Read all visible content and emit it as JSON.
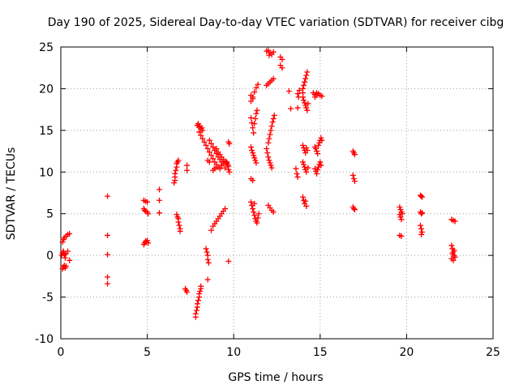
{
  "chart_data": {
    "type": "scatter",
    "title": "Day 190 of 2025, Sidereal Day-to-day VTEC variation (SDTVAR) for receiver cibg",
    "xlabel": "GPS time / hours",
    "ylabel": "SDTVAR / TECUs",
    "xlim": [
      0,
      25
    ],
    "ylim": [
      -10,
      25
    ],
    "xticks": [
      0,
      5,
      10,
      15,
      20,
      25
    ],
    "yticks": [
      -10,
      -5,
      0,
      5,
      10,
      15,
      20,
      25
    ],
    "grid": true,
    "marker": "+",
    "color": "#ff0000",
    "series": [
      {
        "name": "SDTVAR",
        "points": [
          [
            0.1,
            -1.6
          ],
          [
            0.15,
            -1.4
          ],
          [
            0.2,
            -1.2
          ],
          [
            0.25,
            -1.5
          ],
          [
            0.3,
            -1.3
          ],
          [
            0.05,
            0.0
          ],
          [
            0.1,
            0.3
          ],
          [
            0.15,
            0.5
          ],
          [
            0.2,
            0.1
          ],
          [
            0.25,
            -0.3
          ],
          [
            0.3,
            0.2
          ],
          [
            0.4,
            0.5
          ],
          [
            0.1,
            1.6
          ],
          [
            0.15,
            1.9
          ],
          [
            0.2,
            2.1
          ],
          [
            0.3,
            2.3
          ],
          [
            0.4,
            2.5
          ],
          [
            0.5,
            2.6
          ],
          [
            0.5,
            -0.6
          ],
          [
            2.7,
            7.1
          ],
          [
            2.7,
            2.4
          ],
          [
            2.7,
            0.1
          ],
          [
            2.7,
            -2.6
          ],
          [
            2.7,
            -3.4
          ],
          [
            4.8,
            6.6
          ],
          [
            4.9,
            6.5
          ],
          [
            5.0,
            6.4
          ],
          [
            4.8,
            5.6
          ],
          [
            4.85,
            5.4
          ],
          [
            4.9,
            5.3
          ],
          [
            5.0,
            5.2
          ],
          [
            5.05,
            5.0
          ],
          [
            4.8,
            1.3
          ],
          [
            4.85,
            1.5
          ],
          [
            4.9,
            1.7
          ],
          [
            4.95,
            1.6
          ],
          [
            5.0,
            1.8
          ],
          [
            5.05,
            1.5
          ],
          [
            5.7,
            7.9
          ],
          [
            5.7,
            6.6
          ],
          [
            5.7,
            5.1
          ],
          [
            6.7,
            11.0
          ],
          [
            6.75,
            11.2
          ],
          [
            6.8,
            11.4
          ],
          [
            6.7,
            10.6
          ],
          [
            6.65,
            10.2
          ],
          [
            6.6,
            9.8
          ],
          [
            6.6,
            9.4
          ],
          [
            6.6,
            9.0
          ],
          [
            6.55,
            8.7
          ],
          [
            6.7,
            4.9
          ],
          [
            6.75,
            4.6
          ],
          [
            6.8,
            4.4
          ],
          [
            6.8,
            4.0
          ],
          [
            6.85,
            3.6
          ],
          [
            6.9,
            3.2
          ],
          [
            6.9,
            2.9
          ],
          [
            7.3,
            10.8
          ],
          [
            7.3,
            10.2
          ],
          [
            7.2,
            -4.0
          ],
          [
            7.25,
            -4.2
          ],
          [
            7.3,
            -4.4
          ],
          [
            7.8,
            -7.4
          ],
          [
            7.8,
            -7.0
          ],
          [
            7.85,
            -6.6
          ],
          [
            7.9,
            -6.2
          ],
          [
            7.9,
            -5.8
          ],
          [
            7.95,
            -5.4
          ],
          [
            8.0,
            -5.0
          ],
          [
            8.0,
            -4.6
          ],
          [
            8.05,
            -4.3
          ],
          [
            8.1,
            -4.0
          ],
          [
            8.1,
            -3.7
          ],
          [
            7.9,
            15.6
          ],
          [
            8.0,
            15.4
          ],
          [
            8.1,
            15.2
          ],
          [
            8.2,
            15.0
          ],
          [
            7.95,
            15.8
          ],
          [
            8.05,
            15.5
          ],
          [
            8.15,
            15.3
          ],
          [
            8.0,
            14.8
          ],
          [
            8.1,
            14.4
          ],
          [
            8.2,
            14.0
          ],
          [
            8.3,
            13.6
          ],
          [
            8.4,
            13.2
          ],
          [
            8.5,
            12.8
          ],
          [
            8.6,
            12.4
          ],
          [
            8.7,
            12.0
          ],
          [
            8.8,
            11.6
          ],
          [
            8.9,
            11.2
          ],
          [
            9.0,
            10.9
          ],
          [
            9.1,
            10.6
          ],
          [
            9.2,
            10.4
          ],
          [
            8.6,
            13.8
          ],
          [
            8.7,
            13.4
          ],
          [
            8.8,
            13.0
          ],
          [
            8.9,
            12.6
          ],
          [
            9.0,
            12.2
          ],
          [
            9.1,
            11.8
          ],
          [
            9.2,
            11.5
          ],
          [
            9.3,
            11.2
          ],
          [
            9.0,
            12.8
          ],
          [
            9.1,
            12.4
          ],
          [
            9.2,
            12.1
          ],
          [
            9.3,
            11.8
          ],
          [
            9.4,
            11.5
          ],
          [
            9.5,
            11.3
          ],
          [
            9.6,
            11.1
          ],
          [
            8.8,
            10.2
          ],
          [
            8.9,
            10.4
          ],
          [
            9.0,
            10.6
          ],
          [
            9.3,
            10.8
          ],
          [
            9.4,
            11.0
          ],
          [
            9.5,
            10.5
          ],
          [
            8.5,
            11.4
          ],
          [
            8.6,
            11.2
          ],
          [
            8.4,
            0.8
          ],
          [
            8.45,
            0.4
          ],
          [
            8.5,
            0.0
          ],
          [
            8.5,
            -0.5
          ],
          [
            8.55,
            -0.9
          ],
          [
            8.5,
            -2.9
          ],
          [
            8.7,
            3.0
          ],
          [
            8.8,
            3.5
          ],
          [
            8.9,
            3.8
          ],
          [
            9.0,
            4.1
          ],
          [
            9.1,
            4.4
          ],
          [
            9.2,
            4.7
          ],
          [
            9.3,
            5.0
          ],
          [
            9.4,
            5.3
          ],
          [
            9.5,
            5.6
          ],
          [
            9.7,
            13.6
          ],
          [
            9.75,
            13.4
          ],
          [
            9.6,
            11.2
          ],
          [
            9.65,
            10.9
          ],
          [
            9.7,
            10.7
          ],
          [
            9.7,
            10.3
          ],
          [
            9.75,
            10.0
          ],
          [
            9.7,
            -0.7
          ],
          [
            11.0,
            18.5
          ],
          [
            11.1,
            19.0
          ],
          [
            11.2,
            19.6
          ],
          [
            11.3,
            20.1
          ],
          [
            11.4,
            20.5
          ],
          [
            11.0,
            19.2
          ],
          [
            11.1,
            18.8
          ],
          [
            11.0,
            16.5
          ],
          [
            11.05,
            15.9
          ],
          [
            11.1,
            15.3
          ],
          [
            11.15,
            14.7
          ],
          [
            11.2,
            15.8
          ],
          [
            11.25,
            16.4
          ],
          [
            11.3,
            17.0
          ],
          [
            11.35,
            17.4
          ],
          [
            11.0,
            13.0
          ],
          [
            11.05,
            12.6
          ],
          [
            11.1,
            12.3
          ],
          [
            11.15,
            12.0
          ],
          [
            11.2,
            11.7
          ],
          [
            11.25,
            11.4
          ],
          [
            11.3,
            11.1
          ],
          [
            11.0,
            9.2
          ],
          [
            11.1,
            9.0
          ],
          [
            11.0,
            6.4
          ],
          [
            11.05,
            6.0
          ],
          [
            11.1,
            5.6
          ],
          [
            11.15,
            5.2
          ],
          [
            11.2,
            4.8
          ],
          [
            11.25,
            4.4
          ],
          [
            11.3,
            4.1
          ],
          [
            11.35,
            3.9
          ],
          [
            11.4,
            4.5
          ],
          [
            11.45,
            5.0
          ],
          [
            11.2,
            6.2
          ],
          [
            12.0,
            24.6
          ],
          [
            12.1,
            24.3
          ],
          [
            12.2,
            24.1
          ],
          [
            12.3,
            24.4
          ],
          [
            11.9,
            24.5
          ],
          [
            12.05,
            24.0
          ],
          [
            11.9,
            20.4
          ],
          [
            12.0,
            20.6
          ],
          [
            12.1,
            20.8
          ],
          [
            12.2,
            21.0
          ],
          [
            12.3,
            21.2
          ],
          [
            12.0,
            13.5
          ],
          [
            12.05,
            14.0
          ],
          [
            12.1,
            14.5
          ],
          [
            12.15,
            15.0
          ],
          [
            12.2,
            15.5
          ],
          [
            12.25,
            16.0
          ],
          [
            12.3,
            16.4
          ],
          [
            12.35,
            16.8
          ],
          [
            11.9,
            12.8
          ],
          [
            11.95,
            12.3
          ],
          [
            12.0,
            11.8
          ],
          [
            12.05,
            11.4
          ],
          [
            12.1,
            11.1
          ],
          [
            12.15,
            10.8
          ],
          [
            12.2,
            10.5
          ],
          [
            12.0,
            6.0
          ],
          [
            12.1,
            5.7
          ],
          [
            12.2,
            5.4
          ],
          [
            12.3,
            5.2
          ],
          [
            12.7,
            23.8
          ],
          [
            12.8,
            23.5
          ],
          [
            12.7,
            22.8
          ],
          [
            12.8,
            22.5
          ],
          [
            13.2,
            19.7
          ],
          [
            13.3,
            17.6
          ],
          [
            13.7,
            19.4
          ],
          [
            13.75,
            19.0
          ],
          [
            13.8,
            19.8
          ],
          [
            13.7,
            17.7
          ],
          [
            13.6,
            10.4
          ],
          [
            13.65,
            9.8
          ],
          [
            13.7,
            9.4
          ],
          [
            14.0,
            20.0
          ],
          [
            14.05,
            20.4
          ],
          [
            14.1,
            20.8
          ],
          [
            14.15,
            21.2
          ],
          [
            14.2,
            21.6
          ],
          [
            14.25,
            22.0
          ],
          [
            14.0,
            19.5
          ],
          [
            14.0,
            19.0
          ],
          [
            14.05,
            18.6
          ],
          [
            14.1,
            18.3
          ],
          [
            14.15,
            18.0
          ],
          [
            14.2,
            17.7
          ],
          [
            14.25,
            17.4
          ],
          [
            14.3,
            18.2
          ],
          [
            14.0,
            13.2
          ],
          [
            14.05,
            12.9
          ],
          [
            14.1,
            12.6
          ],
          [
            14.15,
            12.3
          ],
          [
            14.2,
            12.9
          ],
          [
            14.25,
            12.6
          ],
          [
            14.0,
            11.2
          ],
          [
            14.05,
            10.9
          ],
          [
            14.1,
            10.6
          ],
          [
            14.15,
            10.3
          ],
          [
            14.2,
            10.0
          ],
          [
            14.3,
            10.5
          ],
          [
            14.0,
            7.0
          ],
          [
            14.05,
            6.6
          ],
          [
            14.1,
            6.2
          ],
          [
            14.15,
            6.5
          ],
          [
            14.2,
            5.9
          ],
          [
            14.6,
            19.5
          ],
          [
            14.7,
            19.3
          ],
          [
            14.8,
            19.2
          ],
          [
            14.9,
            19.4
          ],
          [
            15.0,
            19.2
          ],
          [
            15.1,
            19.1
          ],
          [
            14.7,
            19.0
          ],
          [
            14.8,
            19.5
          ],
          [
            14.7,
            13.0
          ],
          [
            14.75,
            12.8
          ],
          [
            14.8,
            12.5
          ],
          [
            14.85,
            12.2
          ],
          [
            14.9,
            13.2
          ],
          [
            14.95,
            13.5
          ],
          [
            15.0,
            13.8
          ],
          [
            15.05,
            14.1
          ],
          [
            15.1,
            13.8
          ],
          [
            14.7,
            10.4
          ],
          [
            14.75,
            10.1
          ],
          [
            14.8,
            9.8
          ],
          [
            14.85,
            10.3
          ],
          [
            14.9,
            10.6
          ],
          [
            14.95,
            10.9
          ],
          [
            15.0,
            11.2
          ],
          [
            15.05,
            10.8
          ],
          [
            16.9,
            12.5
          ],
          [
            16.95,
            12.3
          ],
          [
            17.0,
            12.1
          ],
          [
            16.9,
            9.6
          ],
          [
            16.95,
            9.2
          ],
          [
            17.0,
            8.9
          ],
          [
            16.9,
            5.8
          ],
          [
            16.95,
            5.6
          ],
          [
            17.0,
            5.5
          ],
          [
            19.6,
            5.8
          ],
          [
            19.65,
            5.5
          ],
          [
            19.7,
            5.2
          ],
          [
            19.6,
            4.9
          ],
          [
            19.65,
            4.6
          ],
          [
            19.7,
            4.3
          ],
          [
            19.75,
            5.0
          ],
          [
            19.6,
            2.4
          ],
          [
            19.7,
            2.3
          ],
          [
            20.8,
            7.2
          ],
          [
            20.85,
            7.1
          ],
          [
            20.9,
            7.0
          ],
          [
            20.8,
            5.2
          ],
          [
            20.85,
            5.0
          ],
          [
            20.9,
            5.1
          ],
          [
            20.8,
            3.6
          ],
          [
            20.85,
            3.2
          ],
          [
            20.9,
            2.8
          ],
          [
            20.85,
            2.5
          ],
          [
            22.6,
            4.3
          ],
          [
            22.7,
            4.2
          ],
          [
            22.8,
            4.1
          ],
          [
            22.6,
            1.2
          ],
          [
            22.65,
            0.8
          ],
          [
            22.7,
            0.4
          ],
          [
            22.75,
            0.0
          ],
          [
            22.6,
            -0.4
          ],
          [
            22.7,
            -0.6
          ],
          [
            22.8,
            -0.2
          ],
          [
            22.65,
            0.2
          ],
          [
            22.75,
            0.6
          ]
        ]
      }
    ]
  }
}
